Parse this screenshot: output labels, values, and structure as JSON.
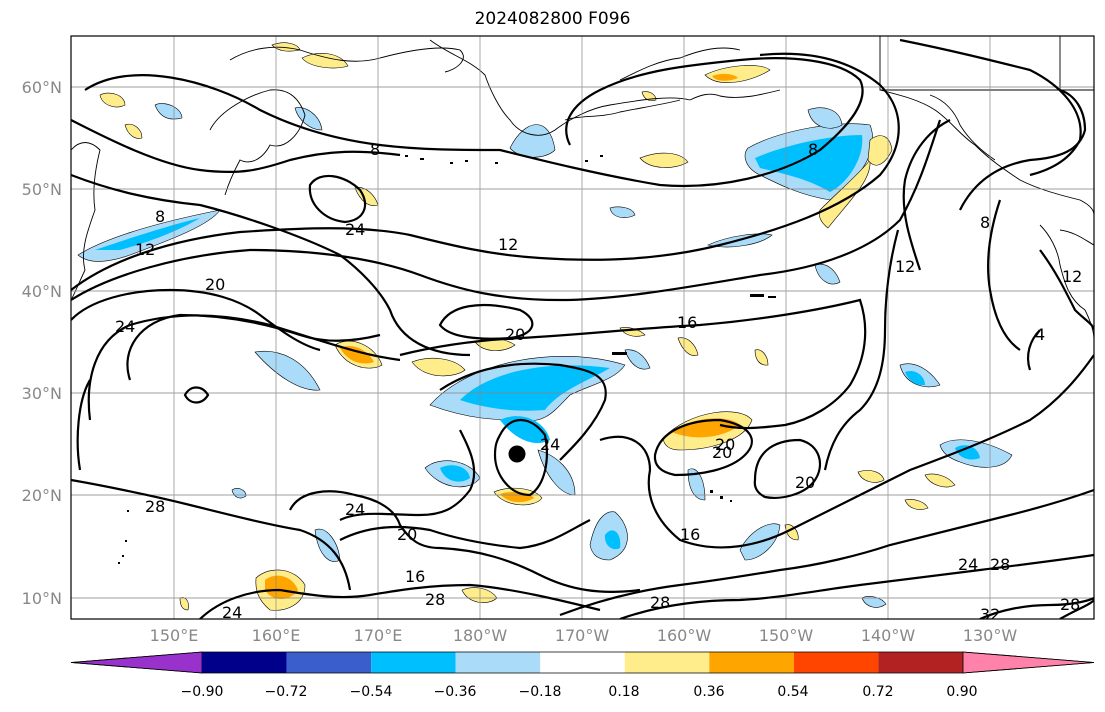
{
  "title": "2024082800 F096",
  "lat_labels": [
    "60°N",
    "50°N",
    "40°N",
    "30°N",
    "20°N",
    "10°N"
  ],
  "lon_labels": [
    "150°E",
    "160°E",
    "170°E",
    "180°W",
    "170°W",
    "160°W",
    "150°W",
    "140°W",
    "130°W"
  ],
  "colorbar": {
    "ticks": [
      "−0.90",
      "−0.72",
      "−0.54",
      "−0.36",
      "−0.18",
      "0.18",
      "0.36",
      "0.54",
      "0.72",
      "0.90"
    ],
    "colors": [
      "#9932cc",
      "#00008b",
      "#3a5fcd",
      "#00bfff",
      "#aadcfa",
      "#ffffff",
      "#ffec8b",
      "#ffa500",
      "#ff4500",
      "#b22222",
      "#ff82ab"
    ]
  },
  "contour_labels": [
    "8",
    "12",
    "20",
    "24",
    "24",
    "28",
    "20",
    "24",
    "8",
    "12",
    "16",
    "20",
    "24",
    "20",
    "16",
    "28",
    "20",
    "20",
    "16",
    "8",
    "12",
    "12",
    "24",
    "28",
    "32",
    "28",
    "4",
    "24"
  ],
  "marker": "typhoon-center"
}
